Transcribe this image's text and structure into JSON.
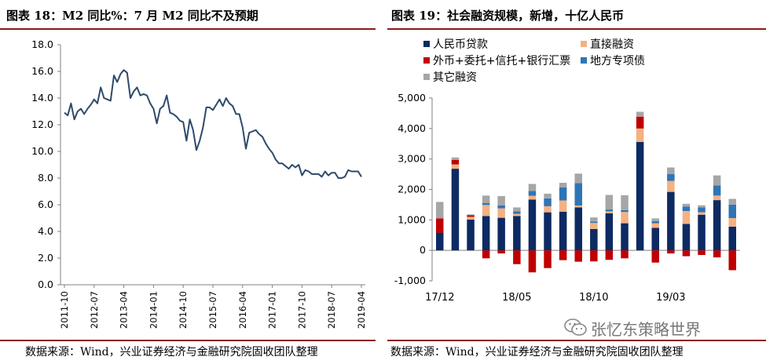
{
  "left": {
    "title": "图表 18：M2 同比%：7 月 M2 同比不及预期",
    "source": "数据来源：Wind，兴业证券经济与金融研究院固收团队整理"
  },
  "right": {
    "title": "图表 19：社会融资规模，新增，十亿人民币",
    "source": "数据来源：Wind，兴业证券经济与金融研究院固收团队整理"
  },
  "watermark": "张忆东策略世界",
  "colors": {
    "line": "#2e4a6b",
    "rmb_loans": "#0d2a62",
    "direct_financing": "#f4b183",
    "offbalance": "#c00000",
    "local_bonds": "#2e75b6",
    "other": "#a6a6a6",
    "title_rule": "#8b1a1a"
  },
  "chart_data": [
    {
      "type": "line",
      "title": "M2 同比%",
      "ylim": [
        0,
        18
      ],
      "yticks": [
        "0.0",
        "2.0",
        "4.0",
        "6.0",
        "8.0",
        "10.0",
        "12.0",
        "14.0",
        "16.0",
        "18.0"
      ],
      "xticks": [
        "2011-10",
        "2012-07",
        "2013-04",
        "2014-01",
        "2014-10",
        "2015-07",
        "2016-04",
        "2017-01",
        "2017-10",
        "2018-07",
        "2019-04"
      ],
      "series": [
        {
          "values": [
            12.9,
            12.7,
            13.6,
            12.4,
            13.0,
            13.2,
            12.8,
            13.2,
            13.5,
            13.9,
            13.6,
            14.8,
            14.0,
            13.9,
            13.8,
            15.7,
            15.2,
            15.8,
            16.1,
            15.9,
            14.0,
            14.5,
            14.8,
            14.2,
            14.3,
            14.2,
            13.6,
            13.2,
            12.1,
            13.2,
            13.4,
            14.2,
            12.9,
            12.8,
            12.6,
            12.3,
            12.2,
            10.8,
            12.4,
            11.6,
            10.1,
            10.8,
            11.8,
            13.3,
            13.3,
            13.1,
            13.5,
            13.9,
            13.4,
            14.0,
            13.6,
            13.4,
            12.8,
            12.8,
            11.8,
            10.2,
            11.4,
            11.5,
            11.6,
            11.3,
            11.1,
            10.6,
            10.2,
            9.9,
            9.4,
            9.1,
            9.1,
            8.9,
            8.7,
            9.0,
            8.8,
            9.0,
            8.2,
            8.6,
            8.5,
            8.3,
            8.3,
            8.3,
            8.1,
            8.5,
            8.2,
            8.4,
            8.4,
            8.0,
            8.0,
            8.1,
            8.6,
            8.5,
            8.5,
            8.5,
            8.1
          ]
        }
      ]
    },
    {
      "type": "bar",
      "title": "社会融资规模，新增，十亿人民币",
      "ylim": [
        -1000,
        5000
      ],
      "yticks": [
        "-1,000",
        "0",
        "1,000",
        "2,000",
        "3,000",
        "4,000",
        "5,000"
      ],
      "xticks": [
        {
          "label": "17/12",
          "index": 0
        },
        {
          "label": "18/05",
          "index": 5
        },
        {
          "label": "18/10",
          "index": 10
        },
        {
          "label": "19/03",
          "index": 15
        }
      ],
      "legend": [
        "人民币贷款",
        "直接融资",
        "外币+委托+信托+银行汇票",
        "地方专项债",
        "其它融资"
      ],
      "series": [
        {
          "name": "人民币贷款",
          "values": [
            580,
            2680,
            1010,
            1130,
            1070,
            1130,
            1670,
            1250,
            1270,
            1410,
            700,
            1220,
            890,
            3560,
            740,
            1920,
            870,
            1170,
            1650,
            780
          ]
        },
        {
          "name": "直接融资",
          "values": [
            0,
            140,
            90,
            360,
            310,
            70,
            120,
            200,
            370,
            60,
            200,
            60,
            370,
            440,
            150,
            360,
            420,
            80,
            150,
            280
          ]
        },
        {
          "name": "外币+委托+信托+银行汇票",
          "values": [
            470,
            150,
            50,
            -260,
            -100,
            -450,
            -720,
            -580,
            -320,
            -370,
            -360,
            -310,
            -260,
            390,
            -400,
            -100,
            -190,
            -150,
            -230,
            -650
          ]
        },
        {
          "name": "地方专项债",
          "values": [
            0,
            0,
            0,
            60,
            100,
            80,
            160,
            260,
            430,
            740,
            50,
            60,
            60,
            0,
            70,
            230,
            150,
            160,
            330,
            440
          ]
        },
        {
          "name": "其它融资",
          "values": [
            540,
            80,
            30,
            250,
            300,
            130,
            230,
            150,
            150,
            310,
            130,
            480,
            490,
            160,
            90,
            210,
            90,
            70,
            330,
            190
          ]
        }
      ]
    }
  ]
}
